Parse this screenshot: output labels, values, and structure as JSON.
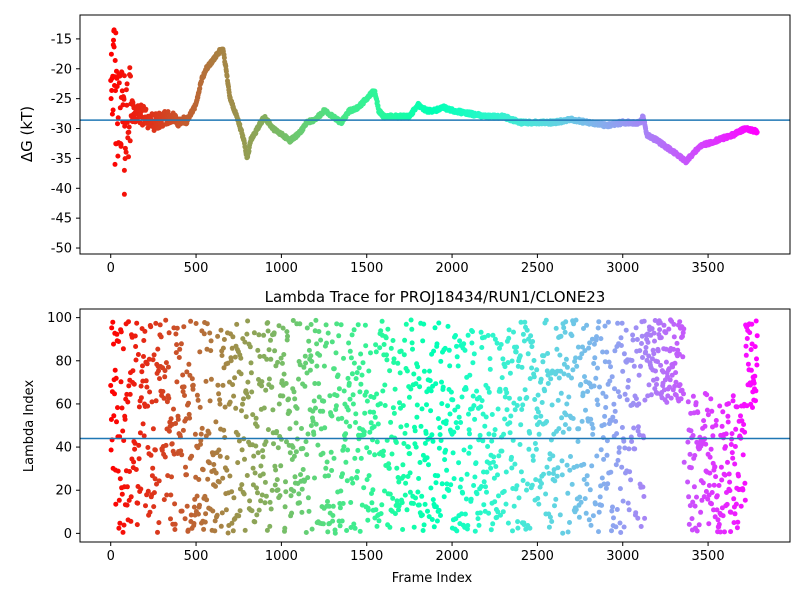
{
  "chart_data": [
    {
      "type": "scatter",
      "title": "",
      "xlabel": "",
      "ylabel": "ΔG (kT)",
      "xlim": [
        -180,
        3980
      ],
      "ylim": [
        -51,
        -11
      ],
      "xticks": [
        "0",
        "500",
        "1000",
        "1500",
        "2000",
        "2500",
        "3000",
        "3500"
      ],
      "yticks": [
        "-15",
        "-20",
        "-25",
        "-30",
        "-35",
        "-40",
        "-45",
        "-50"
      ],
      "reference_line": {
        "y": -28.6,
        "color": "#1f77b4"
      },
      "colormap": "rainbow (red at frame 0 → purple at last frame)",
      "n_points": 3790,
      "series": [
        {
          "trace_description": "Cumulative free energy estimate per frame",
          "x": [
            0,
            20,
            40,
            60,
            80,
            100,
            150,
            200,
            250,
            300,
            350,
            400,
            450,
            500,
            530,
            560,
            600,
            640,
            660,
            700,
            750,
            780,
            800,
            820,
            850,
            900,
            950,
            1000,
            1050,
            1100,
            1150,
            1200,
            1250,
            1300,
            1350,
            1400,
            1450,
            1500,
            1530,
            1550,
            1570,
            1600,
            1700,
            1750,
            1800,
            1850,
            1900,
            1950,
            2000,
            2100,
            2200,
            2300,
            2400,
            2450,
            2500,
            2600,
            2700,
            2800,
            2900,
            3000,
            3100,
            3120,
            3140,
            3200,
            3300,
            3370,
            3450,
            3550,
            3650,
            3720,
            3790
          ],
          "y": [
            -18,
            -22,
            -30,
            -25,
            -29,
            -27,
            -27.5,
            -28,
            -29,
            -28.5,
            -28,
            -29,
            -28.5,
            -26,
            -22,
            -20,
            -18.5,
            -17,
            -17,
            -25,
            -29,
            -32,
            -35,
            -32,
            -30.5,
            -28,
            -30,
            -31,
            -32,
            -31,
            -29,
            -28.5,
            -27,
            -28,
            -29,
            -27,
            -26.5,
            -25,
            -24,
            -24,
            -27,
            -28,
            -28,
            -28,
            -26,
            -27,
            -27,
            -26.5,
            -27,
            -27.5,
            -28,
            -28,
            -29,
            -29,
            -29,
            -29,
            -28.5,
            -29,
            -29.5,
            -29,
            -29,
            -28,
            -31,
            -32,
            -34,
            -35.5,
            -33,
            -32,
            -31,
            -30,
            -30.5
          ]
        }
      ]
    },
    {
      "type": "scatter",
      "title": "Lambda Trace for PROJ18434/RUN1/CLONE23",
      "xlabel": "Frame Index",
      "ylabel": "Lambda Index",
      "xlim": [
        -180,
        3980
      ],
      "ylim": [
        -4,
        104
      ],
      "xticks": [
        "0",
        "500",
        "1000",
        "1500",
        "2000",
        "2500",
        "3000",
        "3500"
      ],
      "yticks": [
        "0",
        "20",
        "40",
        "60",
        "80",
        "100"
      ],
      "reference_line": {
        "y": 44,
        "color": "#1f77b4"
      },
      "colormap": "rainbow (red at frame 0 → purple at last frame)",
      "n_points": 3790,
      "series": [
        {
          "trace_description": "Lambda index visited at each frame (spread uniformly over 0–99, with regions concentrated at 60–99 around frames 3100–3350 and 0–65 around frames 3380–3720, rising to 60–99 after frame 3720)",
          "x_range": [
            0,
            3790
          ],
          "y_range": [
            0,
            99
          ]
        }
      ]
    }
  ]
}
